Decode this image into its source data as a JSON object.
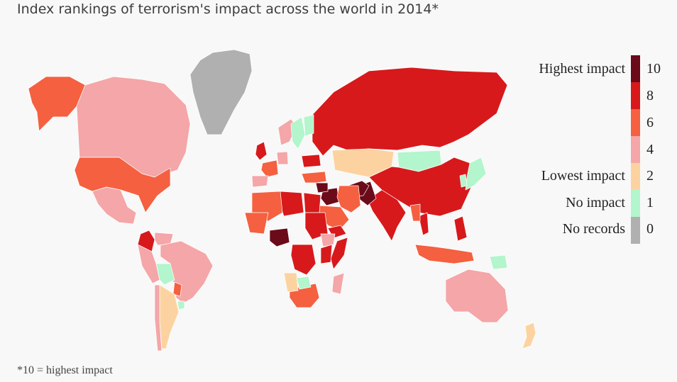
{
  "title": "Index rankings of terrorism's impact across the world in 2014*",
  "footnote": "*10 = highest impact",
  "legend": {
    "labels": [
      {
        "text": "Highest impact",
        "level": 10
      },
      {
        "text": "Lowest impact",
        "level": 2
      },
      {
        "text": "No impact",
        "level": 1
      },
      {
        "text": "No records",
        "level": 0
      }
    ],
    "ticks": [
      "10",
      "8",
      "6",
      "4",
      "2",
      "1",
      "0"
    ]
  },
  "colors": {
    "background": "#f8f8f8",
    "level_10": "#6b0a19",
    "level_8": "#d7191c",
    "level_6": "#f46040",
    "level_4": "#f4a6a8",
    "level_2": "#fcd3a0",
    "level_1": "#b3f5cc",
    "level_0": "#b0b0b0"
  },
  "chart_data": {
    "type": "choropleth",
    "scale": "terrorism impact index (0-10)",
    "regions": [
      {
        "name": "Greenland",
        "level": 0
      },
      {
        "name": "Alaska",
        "level": 6
      },
      {
        "name": "Canada",
        "level": 4
      },
      {
        "name": "United States",
        "level": 6
      },
      {
        "name": "Mexico",
        "level": 4
      },
      {
        "name": "Colombia",
        "level": 8
      },
      {
        "name": "Venezuela",
        "level": 4
      },
      {
        "name": "Brazil",
        "level": 4
      },
      {
        "name": "Peru",
        "level": 4
      },
      {
        "name": "Bolivia",
        "level": 1
      },
      {
        "name": "Paraguay",
        "level": 6
      },
      {
        "name": "Argentina",
        "level": 2
      },
      {
        "name": "Chile",
        "level": 4
      },
      {
        "name": "Uruguay",
        "level": 1
      },
      {
        "name": "Russia",
        "level": 8
      },
      {
        "name": "Kazakhstan",
        "level": 2
      },
      {
        "name": "Mongolia",
        "level": 1
      },
      {
        "name": "China",
        "level": 8
      },
      {
        "name": "India",
        "level": 8
      },
      {
        "name": "Pakistan",
        "level": 10
      },
      {
        "name": "Afghanistan",
        "level": 10
      },
      {
        "name": "Iraq",
        "level": 10
      },
      {
        "name": "Syria",
        "level": 10
      },
      {
        "name": "Iran",
        "level": 6
      },
      {
        "name": "Saudi Arabia",
        "level": 6
      },
      {
        "name": "Yemen",
        "level": 8
      },
      {
        "name": "Turkey",
        "level": 6
      },
      {
        "name": "Nigeria",
        "level": 10
      },
      {
        "name": "Libya",
        "level": 8
      },
      {
        "name": "Egypt",
        "level": 8
      },
      {
        "name": "Sudan",
        "level": 8
      },
      {
        "name": "Somalia",
        "level": 8
      },
      {
        "name": "Kenya",
        "level": 8
      },
      {
        "name": "DR Congo",
        "level": 8
      },
      {
        "name": "Algeria",
        "level": 6
      },
      {
        "name": "Mali",
        "level": 6
      },
      {
        "name": "South Africa",
        "level": 6
      },
      {
        "name": "Namibia",
        "level": 2
      },
      {
        "name": "Botswana",
        "level": 1
      },
      {
        "name": "Madagascar",
        "level": 4
      },
      {
        "name": "Ethiopia",
        "level": 4
      },
      {
        "name": "United Kingdom",
        "level": 8
      },
      {
        "name": "France",
        "level": 6
      },
      {
        "name": "Spain",
        "level": 4
      },
      {
        "name": "Germany",
        "level": 4
      },
      {
        "name": "Norway",
        "level": 4
      },
      {
        "name": "Sweden",
        "level": 1
      },
      {
        "name": "Finland",
        "level": 1
      },
      {
        "name": "Ukraine",
        "level": 8
      },
      {
        "name": "Japan",
        "level": 1
      },
      {
        "name": "Korea",
        "level": 1
      },
      {
        "name": "Thailand",
        "level": 8
      },
      {
        "name": "Myanmar",
        "level": 6
      },
      {
        "name": "Philippines",
        "level": 8
      },
      {
        "name": "Indonesia",
        "level": 6
      },
      {
        "name": "Papua New Guinea",
        "level": 1
      },
      {
        "name": "Australia",
        "level": 4
      },
      {
        "name": "New Zealand",
        "level": 2
      }
    ]
  }
}
